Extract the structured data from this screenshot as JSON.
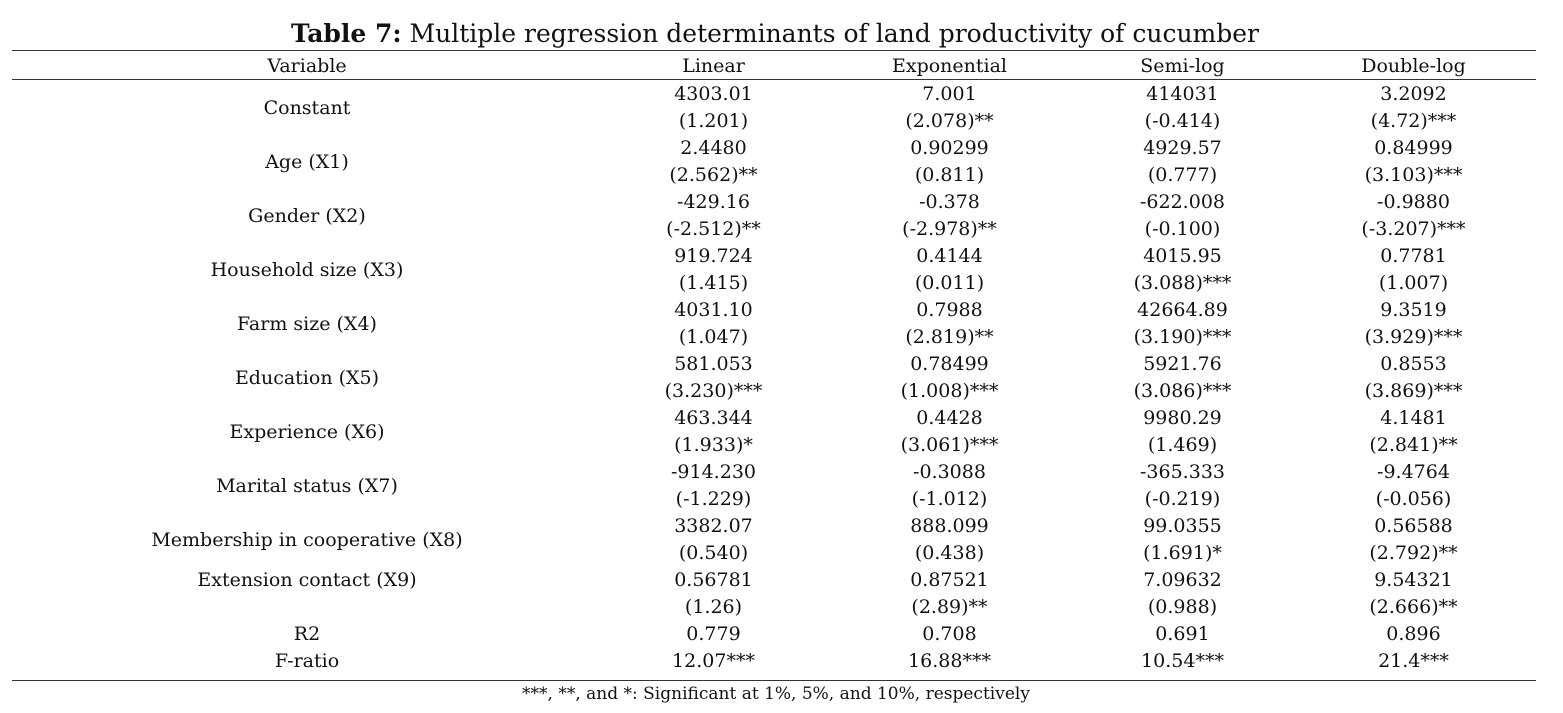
{
  "title": {
    "label": "Table 7:",
    "text": " Multiple regression determinants of land productivity of cucumber"
  },
  "columns": [
    "Variable",
    "Linear",
    "Exponential",
    "Semi-log",
    "Double-log"
  ],
  "rows": [
    {
      "variable": "Constant",
      "coef": [
        "4303.01",
        "7.001",
        "414031",
        "3.2092"
      ],
      "t": [
        "(1.201)",
        "(2.078)**",
        "(-0.414)",
        "(4.72)***"
      ]
    },
    {
      "variable": "Age (X1)",
      "coef": [
        "2.4480",
        "0.90299",
        "4929.57",
        "0.84999"
      ],
      "t": [
        "(2.562)**",
        "(0.811)",
        "(0.777)",
        "(3.103)***"
      ]
    },
    {
      "variable": "Gender (X2)",
      "coef": [
        "-429.16",
        "-0.378",
        "-622.008",
        "-0.9880"
      ],
      "t": [
        "(-2.512)**",
        "(-2.978)**",
        "(-0.100)",
        "(-3.207)***"
      ]
    },
    {
      "variable": "Household size (X3)",
      "coef": [
        "919.724",
        "0.4144",
        "4015.95",
        "0.7781"
      ],
      "t": [
        "(1.415)",
        "(0.011)",
        "(3.088)***",
        "(1.007)"
      ]
    },
    {
      "variable": "Farm size (X4)",
      "coef": [
        "4031.10",
        "0.7988",
        "42664.89",
        "9.3519"
      ],
      "t": [
        "(1.047)",
        "(2.819)**",
        "(3.190)***",
        "(3.929)***"
      ]
    },
    {
      "variable": "Education (X5)",
      "coef": [
        "581.053",
        "0.78499",
        "5921.76",
        "0.8553"
      ],
      "t": [
        "(3.230)***",
        "(1.008)***",
        "(3.086)***",
        "(3.869)***"
      ]
    },
    {
      "variable": "Experience (X6)",
      "coef": [
        "463.344",
        "0.4428",
        "9980.29",
        "4.1481"
      ],
      "t": [
        "(1.933)*",
        "(3.061)***",
        "(1.469)",
        "(2.841)**"
      ]
    },
    {
      "variable": "Marital status (X7)",
      "coef": [
        "-914.230",
        "-0.3088",
        "-365.333",
        "-9.4764"
      ],
      "t": [
        "(-1.229)",
        "(-1.012)",
        "(-0.219)",
        "(-0.056)"
      ]
    },
    {
      "variable": "Membership in cooperative (X8)",
      "coef": [
        "3382.07",
        "888.099",
        "99.0355",
        "0.56588"
      ],
      "t": [
        "(0.540)",
        "(0.438)",
        "(1.691)*",
        "(2.792)**"
      ]
    },
    {
      "variable": "Extension contact (X9)",
      "coef": [
        "0.56781",
        "0.87521",
        "7.09632",
        "9.54321"
      ],
      "t": [
        "(1.26)",
        "(2.89)**",
        "(0.988)",
        "(2.666)**"
      ]
    }
  ],
  "stats": [
    {
      "label": "R2",
      "values": [
        "0.779",
        "0.708",
        "0.691",
        "0.896"
      ]
    },
    {
      "label": "F-ratio",
      "values": [
        "12.07***",
        "16.88***",
        "10.54***",
        "21.4***"
      ]
    }
  ],
  "footnote": "***, **, and *: Significant at 1%, 5%, and 10%, respectively"
}
